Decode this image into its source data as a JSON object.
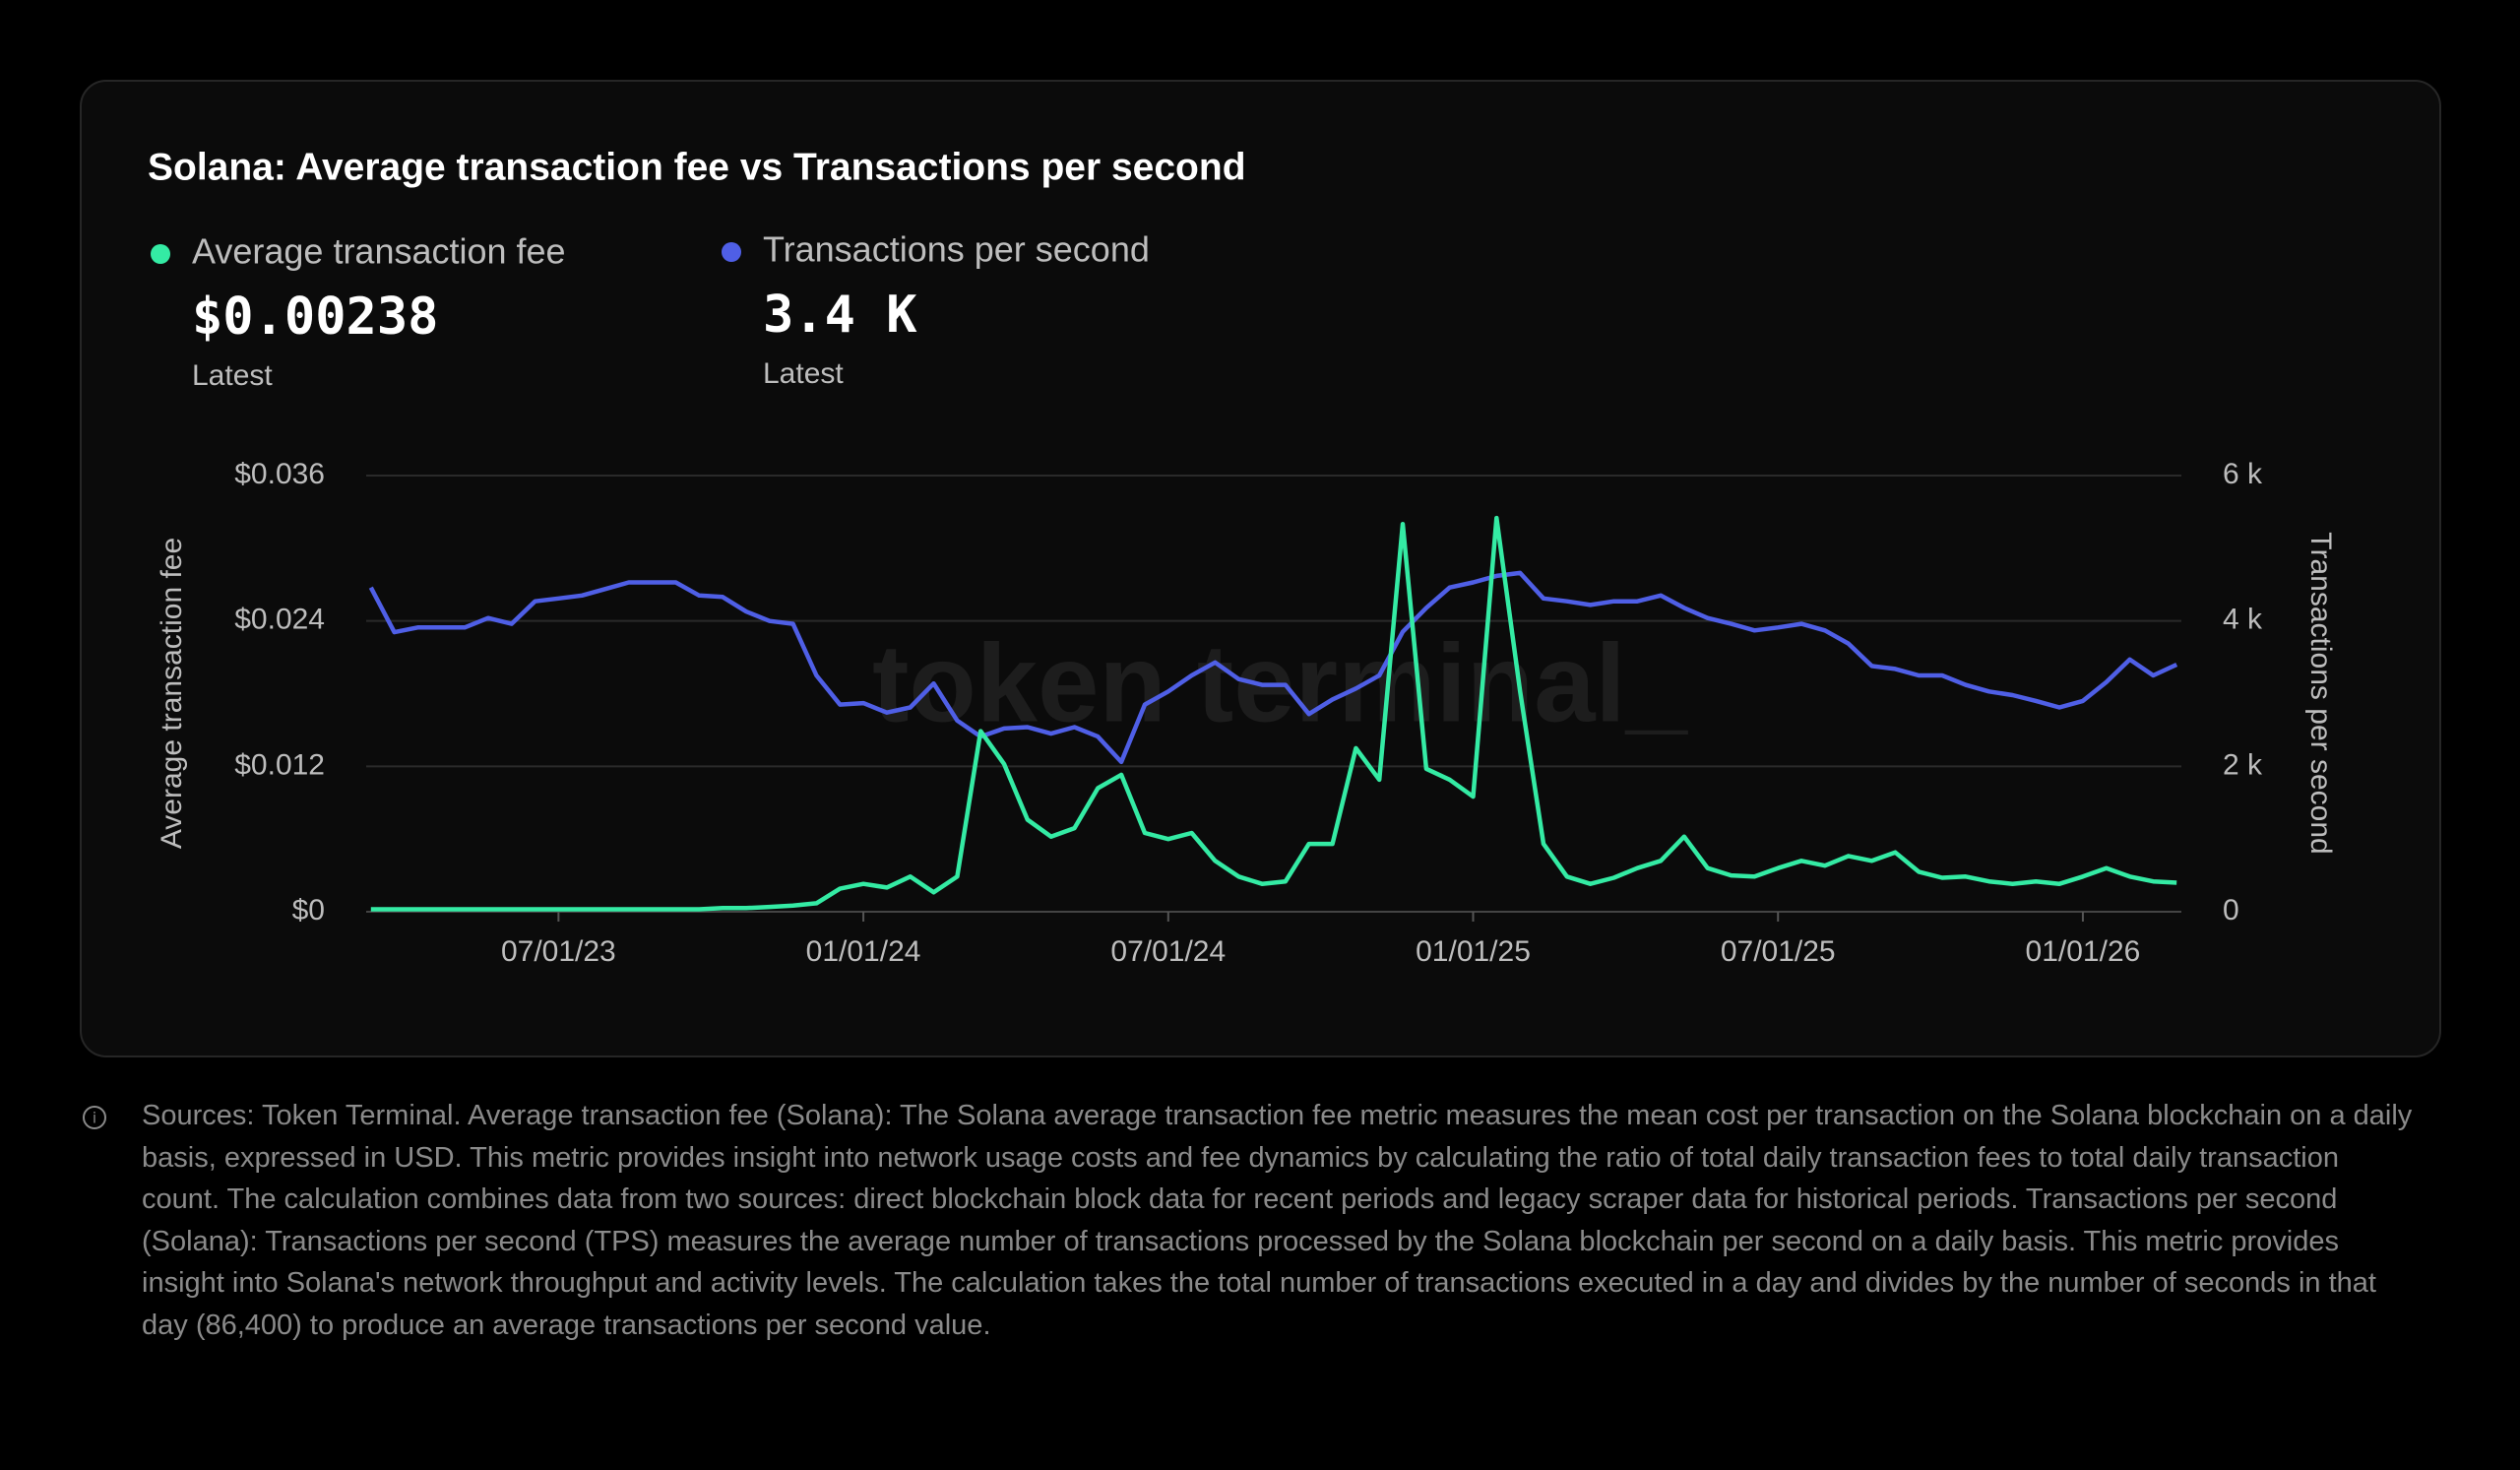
{
  "chart_data": {
    "type": "line",
    "title": "Solana: Average transaction fee vs Transactions per second",
    "watermark": "token terminal_",
    "ylabel": "Average transaction fee",
    "y2label": "Transactions per second",
    "categories": [
      null,
      null,
      null,
      null,
      null,
      null,
      null,
      null,
      "07/01/23",
      null,
      null,
      null,
      null,
      null,
      null,
      null,
      null,
      null,
      null,
      null,
      null,
      "01/01/24",
      null,
      null,
      null,
      null,
      null,
      null,
      null,
      null,
      null,
      null,
      null,
      null,
      "07/01/24",
      null,
      null,
      null,
      null,
      null,
      null,
      null,
      null,
      null,
      null,
      null,
      null,
      "01/01/25",
      null,
      null,
      null,
      null,
      null,
      null,
      null,
      null,
      null,
      null,
      null,
      null,
      "07/01/25",
      null,
      null,
      null,
      null,
      null,
      null,
      null,
      null,
      null,
      null,
      null,
      null,
      "01/01/26",
      null,
      null,
      null,
      null
    ],
    "ylim": [
      0,
      0.036
    ],
    "yticks": [
      {
        "value": 0,
        "label": "$0"
      },
      {
        "value": 0.012,
        "label": "$0.012"
      },
      {
        "value": 0.024,
        "label": "$0.024"
      },
      {
        "value": 0.036,
        "label": "$0.036"
      }
    ],
    "y2lim": [
      0,
      6000
    ],
    "y2ticks": [
      0,
      {
        "value": 2000,
        "label": "2 k"
      },
      {
        "value": 4000,
        "label": "4 k"
      },
      {
        "value": 6000,
        "label": "6 k"
      }
    ],
    "grid": true,
    "series": [
      {
        "name": "Average transaction fee",
        "color": "#34eba4",
        "axis": "y",
        "latest_label": "$0.00238",
        "latest_caption": "Latest",
        "values": [
          0.0002,
          0.0002,
          0.0002,
          0.0002,
          0.0002,
          0.0002,
          0.0002,
          0.0002,
          0.0002,
          0.0002,
          0.0002,
          0.0002,
          0.0002,
          0.0002,
          0.0002,
          0.0003,
          0.0003,
          0.0004,
          0.0005,
          0.0007,
          0.0019,
          0.0023,
          0.002,
          0.0029,
          0.0016,
          0.0029,
          0.0149,
          0.0122,
          0.0076,
          0.0062,
          0.0069,
          0.0102,
          0.0113,
          0.0065,
          0.006,
          0.0065,
          0.0042,
          0.0029,
          0.0023,
          0.0025,
          0.0056,
          0.0056,
          0.0135,
          0.0109,
          0.032,
          0.0118,
          0.0109,
          0.0095,
          0.0325,
          0.0182,
          0.0056,
          0.0029,
          0.0023,
          0.0028,
          0.0036,
          0.0042,
          0.0062,
          0.0036,
          0.003,
          0.0029,
          0.0036,
          0.0042,
          0.0038,
          0.0046,
          0.0042,
          0.0049,
          0.0033,
          0.0028,
          0.0029,
          0.0025,
          0.0023,
          0.0025,
          0.0023,
          0.0029,
          0.0036,
          0.0029,
          0.0025,
          0.0024
        ]
      },
      {
        "name": "Transactions per second",
        "color": "#4f5fe6",
        "axis": "y2",
        "latest_label": "3.4 K",
        "latest_caption": "Latest",
        "values": [
          4460,
          3845,
          3910,
          3910,
          3910,
          4040,
          3960,
          4270,
          4310,
          4350,
          4440,
          4530,
          4530,
          4530,
          4350,
          4330,
          4130,
          4000,
          3960,
          3250,
          2850,
          2870,
          2740,
          2810,
          3140,
          2630,
          2410,
          2520,
          2540,
          2450,
          2540,
          2410,
          2060,
          2850,
          3030,
          3250,
          3430,
          3200,
          3120,
          3120,
          2720,
          2920,
          3070,
          3250,
          3850,
          4180,
          4460,
          4530,
          4620,
          4660,
          4310,
          4270,
          4220,
          4270,
          4270,
          4350,
          4180,
          4040,
          3960,
          3870,
          3910,
          3960,
          3870,
          3690,
          3380,
          3340,
          3250,
          3250,
          3120,
          3030,
          2980,
          2900,
          2810,
          2900,
          3160,
          3470,
          3250,
          3400
        ]
      }
    ]
  },
  "footnote": "Sources: Token Terminal. Average transaction fee (Solana): The Solana average transaction fee metric measures the mean cost per transaction on the Solana blockchain on a daily basis, expressed in USD. This metric provides insight into network usage costs and fee dynamics by calculating the ratio of total daily transaction fees to total daily transaction count. The calculation combines data from two sources: direct blockchain block data for recent periods and legacy scraper data for historical periods. Transactions per second (Solana): Transactions per second (TPS) measures the average number of transactions processed by the Solana blockchain per second on a daily basis. This metric provides insight into Solana's network throughput and activity levels. The calculation takes the total number of transactions executed in a day and divides by the number of seconds in that day (86,400) to produce an average transactions per second value."
}
